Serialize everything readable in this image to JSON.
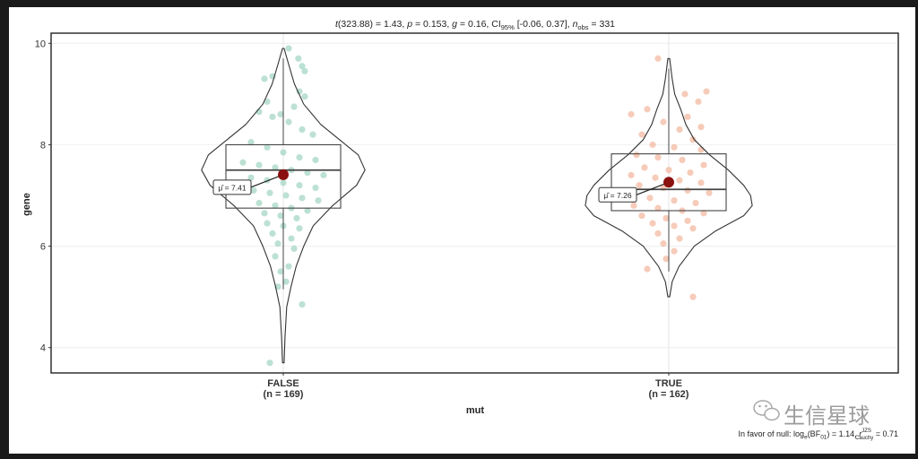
{
  "subtitle": {
    "t_label": "t",
    "t_val": "(323.88) = 1.43, ",
    "p_label": "p",
    "p_val": " = 0.153, ",
    "g_label": "g",
    "g_val": " = 0.16, CI",
    "ci_sub": "95%",
    "ci_val": " [-0.06, 0.37], ",
    "n_label": "n",
    "n_sub": "obs",
    "n_val": " = 331"
  },
  "caption": {
    "prefix": "In favor of null: log",
    "log_sub": "e",
    "bf": "(BF",
    "bf_sub": "01",
    "mid": ") = 1.14, ",
    "r_label": "r",
    "r_sup": "JZS",
    "r_sub": "Cauchy",
    "suffix": " = 0.71"
  },
  "watermark": "生信星球",
  "chart_data": {
    "type": "violin",
    "xlabel": "mut",
    "ylabel": "gene",
    "ylim": [
      3.5,
      10.2
    ],
    "y_ticks": [
      4,
      6,
      8,
      10
    ],
    "grid": true,
    "groups": [
      {
        "category": "FALSE",
        "n_label": "(n = 169)",
        "n": 169,
        "mean": 7.41,
        "mean_label": "μ̂ = 7.41",
        "box": {
          "q1": 6.75,
          "median": 7.5,
          "q3": 8.0,
          "whisker_low": 5.15,
          "whisker_high": 9.7
        },
        "min": 3.7,
        "max": 9.9,
        "point_color": "#8fcdb5",
        "violin_width": [
          [
            3.7,
            0.01
          ],
          [
            4.2,
            0.02
          ],
          [
            4.8,
            0.04
          ],
          [
            5.2,
            0.09
          ],
          [
            5.6,
            0.15
          ],
          [
            6.0,
            0.24
          ],
          [
            6.4,
            0.35
          ],
          [
            6.8,
            0.58
          ],
          [
            7.2,
            0.86
          ],
          [
            7.5,
            0.96
          ],
          [
            7.8,
            0.88
          ],
          [
            8.1,
            0.66
          ],
          [
            8.4,
            0.44
          ],
          [
            8.8,
            0.24
          ],
          [
            9.2,
            0.13
          ],
          [
            9.6,
            0.06
          ],
          [
            9.9,
            0.01
          ]
        ],
        "points": [
          [
            8.65,
            -0.45
          ],
          [
            8.55,
            -0.2
          ],
          [
            8.45,
            0.1
          ],
          [
            8.3,
            0.35
          ],
          [
            8.2,
            0.55
          ],
          [
            8.05,
            -0.6
          ],
          [
            7.95,
            -0.3
          ],
          [
            7.85,
            0.0
          ],
          [
            7.75,
            0.3
          ],
          [
            7.7,
            0.6
          ],
          [
            7.65,
            -0.75
          ],
          [
            7.6,
            -0.45
          ],
          [
            7.55,
            -0.15
          ],
          [
            7.5,
            0.15
          ],
          [
            7.45,
            0.45
          ],
          [
            7.4,
            0.75
          ],
          [
            7.35,
            -0.6
          ],
          [
            7.3,
            -0.3
          ],
          [
            7.25,
            0.0
          ],
          [
            7.2,
            0.3
          ],
          [
            7.15,
            0.6
          ],
          [
            7.1,
            -0.55
          ],
          [
            7.05,
            -0.25
          ],
          [
            7.0,
            0.05
          ],
          [
            6.95,
            0.35
          ],
          [
            6.9,
            0.65
          ],
          [
            6.85,
            -0.45
          ],
          [
            6.8,
            -0.15
          ],
          [
            6.75,
            0.15
          ],
          [
            6.7,
            0.45
          ],
          [
            6.65,
            -0.35
          ],
          [
            6.6,
            -0.05
          ],
          [
            6.55,
            0.25
          ],
          [
            6.45,
            -0.3
          ],
          [
            6.4,
            0.0
          ],
          [
            6.35,
            0.3
          ],
          [
            6.25,
            -0.2
          ],
          [
            6.15,
            0.15
          ],
          [
            6.05,
            -0.1
          ],
          [
            5.95,
            0.2
          ],
          [
            5.8,
            -0.15
          ],
          [
            5.6,
            0.1
          ],
          [
            5.5,
            -0.05
          ],
          [
            5.3,
            0.05
          ],
          [
            5.2,
            -0.1
          ],
          [
            4.85,
            0.35
          ],
          [
            3.7,
            -0.25
          ],
          [
            9.9,
            0.1
          ],
          [
            9.7,
            0.28
          ],
          [
            9.55,
            0.35
          ],
          [
            9.45,
            0.4
          ],
          [
            9.35,
            -0.2
          ],
          [
            9.3,
            -0.35
          ],
          [
            9.05,
            0.3
          ],
          [
            8.95,
            0.4
          ],
          [
            8.85,
            -0.3
          ],
          [
            8.75,
            0.2
          ],
          [
            8.6,
            -0.05
          ]
        ]
      },
      {
        "category": "TRUE",
        "n_label": "(n = 162)",
        "n": 162,
        "mean": 7.26,
        "mean_label": "μ̂ = 7.26",
        "box": {
          "q1": 6.7,
          "median": 7.12,
          "q3": 7.82,
          "whisker_low": 5.5,
          "whisker_high": 9.5
        },
        "min": 5.0,
        "max": 9.7,
        "point_color": "#f0a98a",
        "violin_width": [
          [
            5.0,
            0.01
          ],
          [
            5.3,
            0.04
          ],
          [
            5.6,
            0.12
          ],
          [
            6.0,
            0.3
          ],
          [
            6.3,
            0.55
          ],
          [
            6.6,
            0.88
          ],
          [
            6.8,
            0.98
          ],
          [
            7.0,
            0.96
          ],
          [
            7.2,
            0.88
          ],
          [
            7.5,
            0.7
          ],
          [
            7.8,
            0.48
          ],
          [
            8.1,
            0.3
          ],
          [
            8.4,
            0.2
          ],
          [
            8.7,
            0.14
          ],
          [
            9.0,
            0.07
          ],
          [
            9.3,
            0.04
          ],
          [
            9.7,
            0.01
          ]
        ],
        "points": [
          [
            9.7,
            -0.2
          ],
          [
            9.0,
            0.3
          ],
          [
            8.7,
            -0.4
          ],
          [
            8.55,
            0.35
          ],
          [
            8.45,
            -0.1
          ],
          [
            8.3,
            0.2
          ],
          [
            8.2,
            -0.5
          ],
          [
            8.1,
            0.45
          ],
          [
            8.0,
            -0.3
          ],
          [
            7.95,
            0.1
          ],
          [
            7.9,
            0.6
          ],
          [
            7.8,
            -0.6
          ],
          [
            7.75,
            -0.2
          ],
          [
            7.7,
            0.25
          ],
          [
            7.6,
            0.65
          ],
          [
            7.55,
            -0.45
          ],
          [
            7.5,
            0.0
          ],
          [
            7.45,
            0.4
          ],
          [
            7.4,
            -0.7
          ],
          [
            7.35,
            -0.25
          ],
          [
            7.3,
            0.2
          ],
          [
            7.25,
            0.6
          ],
          [
            7.2,
            -0.55
          ],
          [
            7.15,
            -0.1
          ],
          [
            7.1,
            0.35
          ],
          [
            7.05,
            0.75
          ],
          [
            7.0,
            -0.8
          ],
          [
            6.95,
            -0.35
          ],
          [
            6.9,
            0.1
          ],
          [
            6.85,
            0.5
          ],
          [
            6.8,
            -0.65
          ],
          [
            6.75,
            -0.2
          ],
          [
            6.7,
            0.25
          ],
          [
            6.65,
            0.65
          ],
          [
            6.6,
            -0.5
          ],
          [
            6.55,
            -0.05
          ],
          [
            6.5,
            0.35
          ],
          [
            6.45,
            -0.3
          ],
          [
            6.4,
            0.1
          ],
          [
            6.35,
            0.45
          ],
          [
            6.25,
            -0.2
          ],
          [
            6.15,
            0.2
          ],
          [
            6.05,
            -0.1
          ],
          [
            5.9,
            0.1
          ],
          [
            5.75,
            -0.05
          ],
          [
            5.55,
            -0.4
          ],
          [
            5.0,
            0.45
          ],
          [
            9.05,
            0.7
          ],
          [
            8.85,
            0.55
          ],
          [
            8.6,
            -0.7
          ],
          [
            8.35,
            0.6
          ]
        ]
      }
    ]
  }
}
